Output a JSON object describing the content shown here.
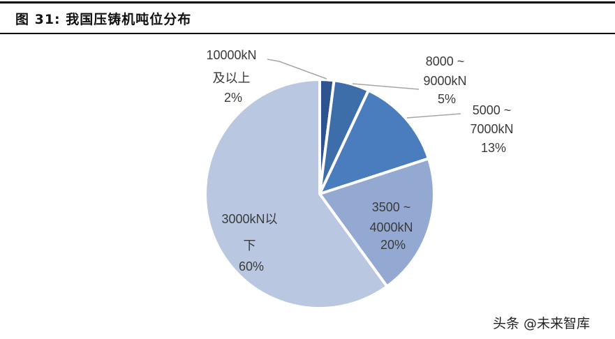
{
  "header": {
    "figure_label": "图 31:",
    "title": "我国压铸机吨位分布"
  },
  "chart_data": {
    "type": "pie",
    "title": "我国压铸机吨位分布",
    "categories": [
      "10000kN及以上",
      "8000~9000kN",
      "5000~7000kN",
      "3500~4000kN",
      "3000kN以下"
    ],
    "values": [
      2,
      5,
      13,
      20,
      60
    ],
    "unit": "%",
    "colors": [
      "#2E5490",
      "#3E6EAA",
      "#4A7DBE",
      "#94A9D2",
      "#BAC7E0"
    ],
    "labels": [
      {
        "lines": [
          "10000kN",
          "及以上",
          "2%"
        ]
      },
      {
        "lines": [
          "8000 ~",
          "9000kN",
          "5%"
        ]
      },
      {
        "lines": [
          "5000 ~",
          "7000kN",
          "13%"
        ]
      },
      {
        "lines": [
          "3500 ~",
          "4000kN",
          "20%"
        ]
      },
      {
        "lines": [
          "3000kN以",
          "下",
          "60%"
        ]
      }
    ],
    "start_angle_deg": 0,
    "direction": "clockwise",
    "legend": "none"
  },
  "watermark": "头条 @未来智库"
}
